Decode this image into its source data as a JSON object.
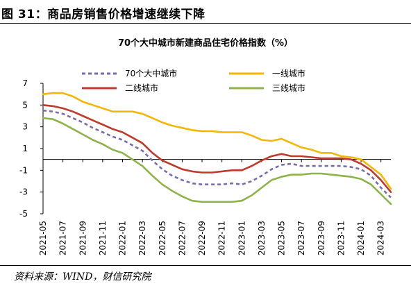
{
  "figure": {
    "title": "图 31：商品房销售价格增速继续下降",
    "source": "资料来源：WIND，财信研究院"
  },
  "chart_data": {
    "type": "line",
    "title": "70个大中城市新建商品住宅价格指数（%）",
    "xlabel": "",
    "ylabel": "",
    "ylim": [
      -5,
      7
    ],
    "yticks": [
      -5,
      -3,
      -1,
      1,
      3,
      5,
      7
    ],
    "grid": false,
    "legend_position": "top",
    "x": [
      "2021-05",
      "2021-06",
      "2021-07",
      "2021-08",
      "2021-09",
      "2021-10",
      "2021-11",
      "2021-12",
      "2022-01",
      "2022-02",
      "2022-03",
      "2022-04",
      "2022-05",
      "2022-06",
      "2022-07",
      "2022-08",
      "2022-09",
      "2022-10",
      "2022-11",
      "2022-12",
      "2023-01",
      "2023-02",
      "2023-03",
      "2023-04",
      "2023-05",
      "2023-06",
      "2023-07",
      "2023-08",
      "2023-09",
      "2023-10",
      "2023-11",
      "2023-12",
      "2024-01",
      "2024-02",
      "2024-03",
      "2024-04"
    ],
    "xtick_labels": [
      "2021-05",
      "2021-07",
      "2021-09",
      "2021-11",
      "2022-01",
      "2022-03",
      "2022-05",
      "2022-07",
      "2022-09",
      "2022-11",
      "2023-01",
      "2023-03",
      "2023-05",
      "2023-07",
      "2023-09",
      "2023-11",
      "2024-01",
      "2024-03"
    ],
    "series": [
      {
        "name": "70个大中城市",
        "color": "#7A6AAE",
        "style": "dashed",
        "values": [
          4.5,
          4.4,
          4.2,
          3.8,
          3.4,
          2.9,
          2.5,
          2.1,
          1.8,
          1.3,
          0.8,
          -0.1,
          -0.9,
          -1.5,
          -1.9,
          -2.2,
          -2.3,
          -2.3,
          -2.3,
          -2.2,
          -2.3,
          -2.0,
          -1.5,
          -0.9,
          -0.5,
          -0.4,
          -0.6,
          -0.6,
          -0.6,
          -0.6,
          -0.6,
          -0.7,
          -0.9,
          -1.5,
          -2.6,
          -3.5
        ]
      },
      {
        "name": "一线城市",
        "color": "#F2B705",
        "style": "solid",
        "values": [
          6.0,
          6.1,
          6.1,
          5.8,
          5.3,
          5.0,
          4.7,
          4.4,
          4.4,
          4.4,
          4.2,
          3.8,
          3.4,
          3.1,
          2.9,
          2.7,
          2.6,
          2.6,
          2.5,
          2.5,
          2.5,
          2.2,
          1.8,
          1.7,
          1.9,
          1.5,
          1.1,
          0.9,
          0.6,
          0.6,
          0.3,
          0.2,
          0.0,
          -0.7,
          -1.4,
          -2.7
        ]
      },
      {
        "name": "二线城市",
        "color": "#C0392B",
        "style": "solid",
        "values": [
          5.0,
          4.9,
          4.7,
          4.4,
          4.0,
          3.6,
          3.2,
          2.8,
          2.5,
          2.0,
          1.5,
          0.6,
          -0.1,
          -0.5,
          -0.9,
          -1.1,
          -1.2,
          -1.2,
          -1.1,
          -1.0,
          -1.0,
          -0.6,
          -0.1,
          0.3,
          0.5,
          0.3,
          0.3,
          0.2,
          0.1,
          0.1,
          0.1,
          0.0,
          -0.4,
          -1.0,
          -1.9,
          -3.0
        ]
      },
      {
        "name": "三线城市",
        "color": "#8DB34A",
        "style": "solid",
        "values": [
          3.8,
          3.7,
          3.3,
          2.8,
          2.3,
          1.8,
          1.4,
          0.9,
          0.6,
          0.0,
          -0.6,
          -1.5,
          -2.3,
          -2.9,
          -3.4,
          -3.8,
          -3.9,
          -3.9,
          -3.9,
          -3.9,
          -3.8,
          -3.3,
          -2.6,
          -1.9,
          -1.6,
          -1.4,
          -1.4,
          -1.3,
          -1.3,
          -1.4,
          -1.5,
          -1.6,
          -1.8,
          -2.3,
          -3.2,
          -4.1
        ]
      }
    ]
  }
}
